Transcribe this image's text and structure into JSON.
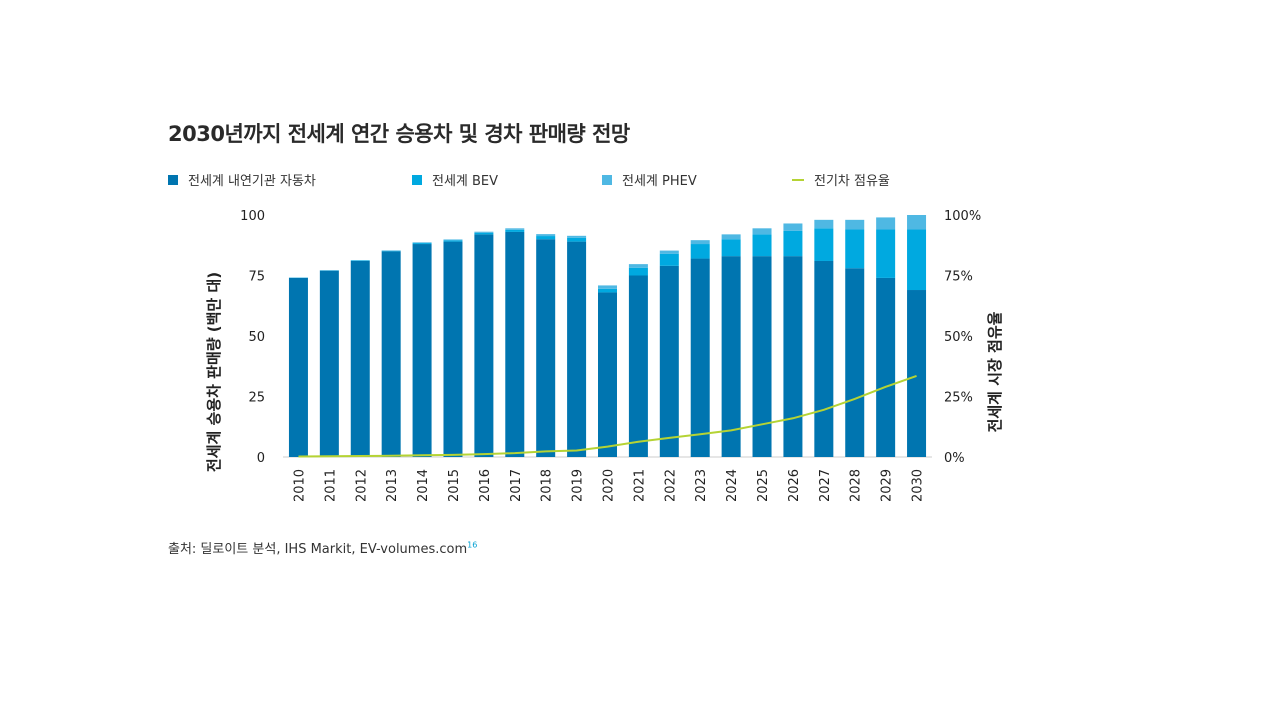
{
  "colors": {
    "ice": "#0075b0",
    "bev": "#00a9e0",
    "phev": "#4fb8e3",
    "share": "#b5d334"
  },
  "chart_data": {
    "type": "bar",
    "title": "2030년까지 전세계 연간 승용차 및 경차 판매량 전망",
    "ylabel": "전세계 승용차 판매량 (백만 대)",
    "y2label": "전세계 시장 점유율",
    "ylim": [
      0,
      100
    ],
    "y2lim": [
      0,
      100
    ],
    "yticks": [
      "0",
      "25",
      "50",
      "75",
      "100"
    ],
    "y2ticks": [
      "0%",
      "25%",
      "50%",
      "75%",
      "100%"
    ],
    "categories": [
      "2010",
      "2011",
      "2012",
      "2013",
      "2014",
      "2015",
      "2016",
      "2017",
      "2018",
      "2019",
      "2020",
      "2021",
      "2022",
      "2023",
      "2024",
      "2025",
      "2026",
      "2027",
      "2028",
      "2029",
      "2030"
    ],
    "series": [
      {
        "name": "전세계 내연기관 자동차",
        "kind": "bar",
        "values": [
          74,
          77,
          81,
          85,
          88,
          89,
          92,
          93,
          90,
          89,
          68,
          75,
          79,
          82,
          83,
          83,
          83,
          81,
          78,
          74,
          69
        ]
      },
      {
        "name": "전세계 BEV",
        "kind": "bar",
        "values": [
          0.1,
          0.1,
          0.2,
          0.2,
          0.4,
          0.5,
          0.6,
          0.9,
          1.3,
          1.6,
          1.5,
          3.2,
          5,
          6,
          7,
          9,
          10.5,
          13.5,
          16,
          20,
          25
        ]
      },
      {
        "name": "전세계 PHEV",
        "kind": "bar",
        "values": [
          0.1,
          0.1,
          0.1,
          0.2,
          0.3,
          0.4,
          0.5,
          0.6,
          0.8,
          0.8,
          1.4,
          1.5,
          1.3,
          1.6,
          2,
          2.5,
          3,
          3.5,
          4,
          5,
          6
        ]
      },
      {
        "name": "전기차 점유율",
        "kind": "line",
        "axis": "right",
        "values": [
          0.2,
          0.3,
          0.4,
          0.5,
          0.7,
          0.9,
          1.2,
          1.6,
          2.3,
          2.7,
          4.3,
          6.3,
          7.9,
          9.4,
          11,
          13.5,
          16,
          19.5,
          24,
          29,
          33.5
        ]
      }
    ],
    "source": "출처: 딜로이트 분석, IHS Markit, EV-volumes.com",
    "source_ref": "16"
  }
}
